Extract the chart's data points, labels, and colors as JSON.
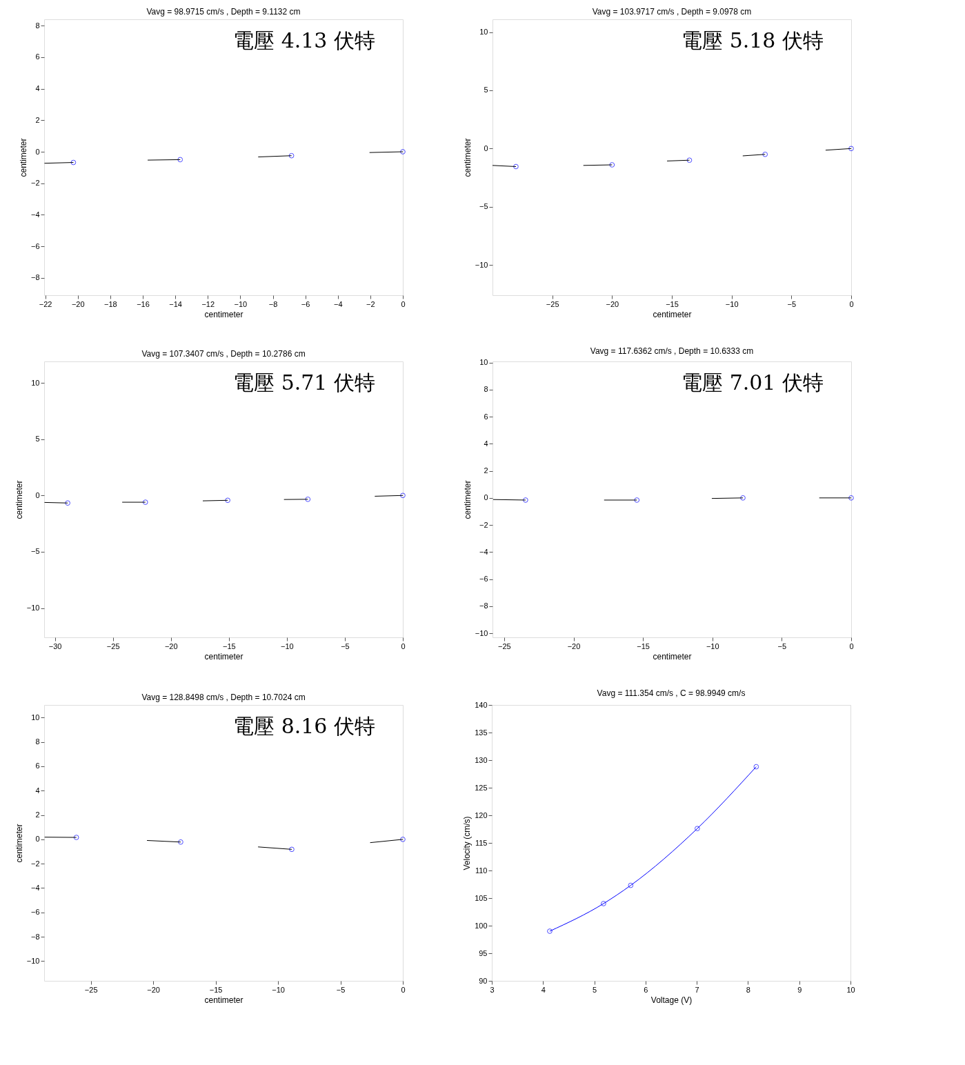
{
  "chart_data": [
    {
      "type": "scatter",
      "title": "Vavg =  98.9715  cm/s   ,   Depth = 9.1132 cm",
      "xlabel": "centimeter",
      "ylabel": "centimeter",
      "annotations": [
        "電壓  4.13 伏特"
      ],
      "xlim": [
        -22.07,
        0
      ],
      "ylim": [
        -9.1,
        8.4
      ],
      "xticks": [
        -22,
        -20,
        -18,
        -16,
        -14,
        -12,
        -10,
        -8,
        -6,
        -4,
        -2,
        0
      ],
      "yticks": [
        -8,
        -6,
        -4,
        -2,
        0,
        2,
        4,
        6,
        8
      ],
      "grid": false,
      "series": [
        {
          "type": "scatter",
          "marker": "circle",
          "color": "#0000ff",
          "x": [
            -20.27,
            -13.7,
            -6.85,
            0
          ],
          "values": [
            -0.68,
            -0.5,
            -0.25,
            0
          ]
        },
        {
          "type": "line",
          "marker": "none",
          "color": "#000000",
          "x": [
            -20.27,
            -22.05
          ],
          "values": [
            -0.68,
            -0.73
          ]
        },
        {
          "type": "line",
          "marker": "none",
          "color": "#000000",
          "x": [
            -13.7,
            -15.7
          ],
          "values": [
            -0.5,
            -0.53
          ]
        },
        {
          "type": "line",
          "marker": "none",
          "color": "#000000",
          "x": [
            -6.85,
            -8.9
          ],
          "values": [
            -0.25,
            -0.33
          ]
        },
        {
          "type": "line",
          "marker": "none",
          "color": "#000000",
          "x": [
            0,
            -2.05
          ],
          "values": [
            0,
            -0.05
          ]
        }
      ]
    },
    {
      "type": "scatter",
      "title": "Vavg =  103.9717  cm/s   ,   Depth = 9.0978 cm",
      "xlabel": "centimeter",
      "ylabel": "centimeter",
      "annotations": [
        "電壓  5.18 伏特"
      ],
      "xlim": [
        -30,
        0
      ],
      "ylim": [
        -12.6,
        11.1
      ],
      "xticks": [
        -25,
        -20,
        -15,
        -10,
        -5,
        0
      ],
      "yticks": [
        -10,
        -5,
        0,
        5,
        10
      ],
      "grid": false,
      "series": [
        {
          "type": "scatter",
          "marker": "circle",
          "color": "#0000ff",
          "x": [
            -28.04,
            -20.0,
            -13.53,
            -7.2,
            0
          ],
          "values": [
            -1.55,
            -1.4,
            -1.0,
            -0.5,
            0
          ]
        },
        {
          "type": "line",
          "marker": "none",
          "color": "#000000",
          "x": [
            -28.04,
            -30.0
          ],
          "values": [
            -1.55,
            -1.45
          ]
        },
        {
          "type": "line",
          "marker": "none",
          "color": "#000000",
          "x": [
            -20.0,
            -22.4
          ],
          "values": [
            -1.4,
            -1.45
          ]
        },
        {
          "type": "line",
          "marker": "none",
          "color": "#000000",
          "x": [
            -13.53,
            -15.4
          ],
          "values": [
            -1.0,
            -1.07
          ]
        },
        {
          "type": "line",
          "marker": "none",
          "color": "#000000",
          "x": [
            -7.2,
            -9.07
          ],
          "values": [
            -0.5,
            -0.63
          ]
        },
        {
          "type": "line",
          "marker": "none",
          "color": "#000000",
          "x": [
            0,
            -2.14
          ],
          "values": [
            0,
            -0.14
          ]
        }
      ]
    },
    {
      "type": "scatter",
      "title": "Vavg =  107.3407  cm/s   ,   Depth = 10.2786 cm",
      "xlabel": "centimeter",
      "ylabel": "centimeter",
      "annotations": [
        "電壓  5.71 伏特"
      ],
      "xlim": [
        -30.93,
        0
      ],
      "ylim": [
        -12.6,
        11.9
      ],
      "xticks": [
        -30,
        -25,
        -20,
        -15,
        -10,
        -5,
        0
      ],
      "yticks": [
        -10,
        -5,
        0,
        5,
        10
      ],
      "grid": false,
      "series": [
        {
          "type": "scatter",
          "marker": "circle",
          "color": "#0000ff",
          "x": [
            -28.9,
            -22.2,
            -15.1,
            -8.19,
            0
          ],
          "values": [
            -0.67,
            -0.6,
            -0.43,
            -0.34,
            0
          ]
        },
        {
          "type": "line",
          "marker": "none",
          "color": "#000000",
          "x": [
            -28.9,
            -30.9
          ],
          "values": [
            -0.67,
            -0.62
          ]
        },
        {
          "type": "line",
          "marker": "none",
          "color": "#000000",
          "x": [
            -22.2,
            -24.2
          ],
          "values": [
            -0.6,
            -0.6
          ]
        },
        {
          "type": "line",
          "marker": "none",
          "color": "#000000",
          "x": [
            -15.1,
            -17.25
          ],
          "values": [
            -0.43,
            -0.48
          ]
        },
        {
          "type": "line",
          "marker": "none",
          "color": "#000000",
          "x": [
            -8.19,
            -10.25
          ],
          "values": [
            -0.34,
            -0.36
          ]
        },
        {
          "type": "line",
          "marker": "none",
          "color": "#000000",
          "x": [
            0,
            -2.42
          ],
          "values": [
            0,
            -0.07
          ]
        }
      ]
    },
    {
      "type": "scatter",
      "title": "Vavg =  117.6362  cm/s   ,   Depth = 10.6333 cm",
      "xlabel": "centimeter",
      "ylabel": "centimeter",
      "annotations": [
        "電壓  7.01 伏特"
      ],
      "xlim": [
        -25.84,
        0
      ],
      "ylim": [
        -10.3,
        10.08
      ],
      "xticks": [
        -25,
        -20,
        -15,
        -10,
        -5,
        0
      ],
      "yticks": [
        -10,
        -8,
        -6,
        -4,
        -2,
        0,
        2,
        4,
        6,
        8,
        10
      ],
      "grid": false,
      "series": [
        {
          "type": "scatter",
          "marker": "circle",
          "color": "#0000ff",
          "x": [
            -23.46,
            -15.44,
            -7.8,
            0
          ],
          "values": [
            -0.16,
            -0.16,
            0,
            0
          ]
        },
        {
          "type": "line",
          "marker": "none",
          "color": "#000000",
          "x": [
            -23.46,
            -25.8
          ],
          "values": [
            -0.16,
            -0.12
          ]
        },
        {
          "type": "line",
          "marker": "none",
          "color": "#000000",
          "x": [
            -15.44,
            -17.8
          ],
          "values": [
            -0.16,
            -0.16
          ]
        },
        {
          "type": "line",
          "marker": "none",
          "color": "#000000",
          "x": [
            -7.8,
            -10.04
          ],
          "values": [
            0,
            -0.04
          ]
        },
        {
          "type": "line",
          "marker": "none",
          "color": "#000000",
          "x": [
            0,
            -2.3
          ],
          "values": [
            0,
            0
          ]
        }
      ]
    },
    {
      "type": "scatter",
      "title": "Vavg =  128.8498  cm/s   ,   Depth = 10.7024 cm",
      "xlabel": "centimeter",
      "ylabel": "centimeter",
      "annotations": [
        "電壓  8.16 伏特"
      ],
      "xlim": [
        -28.74,
        0
      ],
      "ylim": [
        -11.62,
        11.04
      ],
      "xticks": [
        -25,
        -20,
        -15,
        -10,
        -5,
        0
      ],
      "yticks": [
        -10,
        -8,
        -6,
        -4,
        -2,
        0,
        2,
        4,
        6,
        8,
        10
      ],
      "grid": false,
      "series": [
        {
          "type": "scatter",
          "marker": "circle",
          "color": "#0000ff",
          "x": [
            -26.16,
            -17.8,
            -8.9,
            0
          ],
          "values": [
            0.16,
            -0.22,
            -0.82,
            0
          ]
        },
        {
          "type": "line",
          "marker": "none",
          "color": "#000000",
          "x": [
            -26.16,
            -28.7
          ],
          "values": [
            0.16,
            0.18
          ]
        },
        {
          "type": "line",
          "marker": "none",
          "color": "#000000",
          "x": [
            -17.8,
            -20.5
          ],
          "values": [
            -0.22,
            -0.09
          ]
        },
        {
          "type": "line",
          "marker": "none",
          "color": "#000000",
          "x": [
            -8.9,
            -11.6
          ],
          "values": [
            -0.82,
            -0.62
          ]
        },
        {
          "type": "line",
          "marker": "none",
          "color": "#000000",
          "x": [
            0,
            -2.62
          ],
          "values": [
            0,
            -0.27
          ]
        }
      ]
    },
    {
      "type": "line",
      "title": "Vavg = 111.354 cm/s , C = 98.9949 cm/s",
      "xlabel": "Voltage (V)",
      "ylabel": "Velocity (cm/s)",
      "xlim": [
        3,
        10
      ],
      "ylim": [
        90,
        140
      ],
      "xticks": [
        3,
        4,
        5,
        6,
        7,
        8,
        9,
        10
      ],
      "yticks": [
        90,
        95,
        100,
        105,
        110,
        115,
        120,
        125,
        130,
        135,
        140
      ],
      "grid": false,
      "series": [
        {
          "type": "line",
          "marker": "circle",
          "color": "#0000ff",
          "x": [
            4.13,
            5.18,
            5.71,
            7.01,
            8.16
          ],
          "values": [
            99.0,
            104.0,
            107.3,
            117.6,
            128.8
          ]
        }
      ]
    }
  ]
}
